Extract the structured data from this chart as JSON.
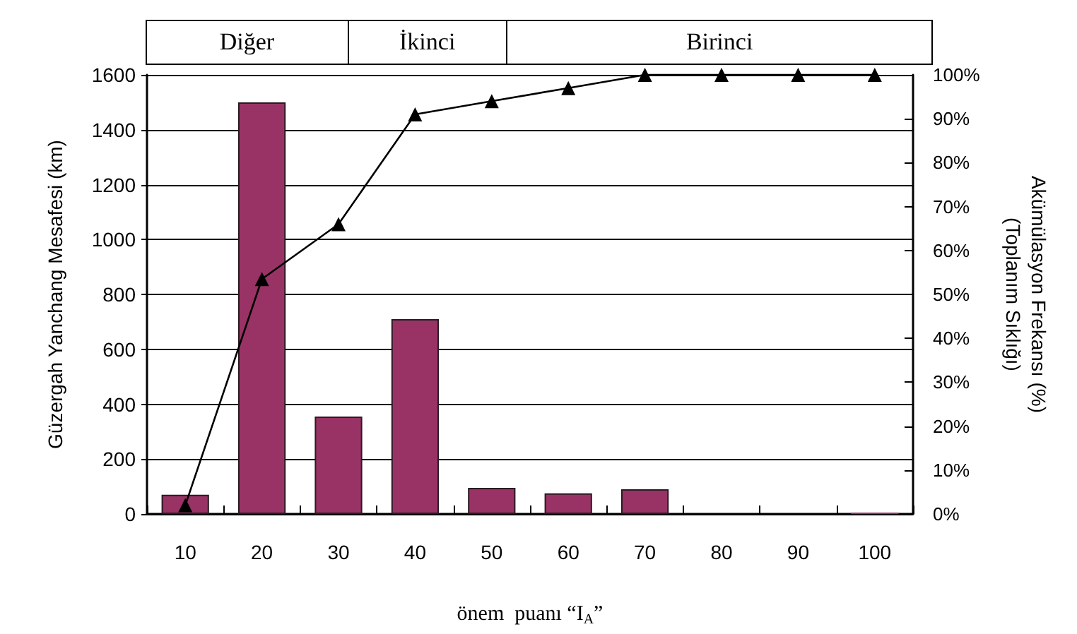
{
  "chart_data": {
    "type": "bar",
    "xlabel": "önem  puanı “I$_{A}$”",
    "ylabel": "Güzergah Yanchang Mesafesi (km)",
    "y2label": "Akümülasyon Frekansı (%)\n(Toplanım Sıklığı)",
    "annotations": [
      "Diğer",
      "İkinci",
      "Birinci"
    ],
    "categories": [
      "10",
      "20",
      "30",
      "40",
      "50",
      "60",
      "70",
      "80",
      "90",
      "100"
    ],
    "series": [
      {
        "color": "#993366",
        "values": [
          70,
          1500,
          355,
          710,
          95,
          75,
          90,
          0,
          0,
          5
        ]
      },
      {
        "type": "line",
        "axis": "y2",
        "color": "#000000",
        "marker": "triangle",
        "line_style": "solid",
        "values": [
          2,
          53.5,
          66,
          91,
          94,
          97,
          100,
          100,
          100,
          100
        ]
      }
    ],
    "ylim": [
      0,
      1600
    ],
    "yticks": [
      0,
      200,
      400,
      600,
      800,
      1000,
      1200,
      1400,
      1600
    ],
    "y2lim": [
      0,
      100
    ],
    "y2ticks": [
      {
        "value": 0,
        "label": "0%"
      },
      {
        "value": 10,
        "label": "10%"
      },
      {
        "value": 20,
        "label": "20%"
      },
      {
        "value": 30,
        "label": "30%"
      },
      {
        "value": 40,
        "label": "40%"
      },
      {
        "value": 50,
        "label": "50%"
      },
      {
        "value": 60,
        "label": "60%"
      },
      {
        "value": 70,
        "label": "70%"
      },
      {
        "value": 80,
        "label": "80%"
      },
      {
        "value": 90,
        "label": "90%"
      },
      {
        "value": 100,
        "label": "100%"
      }
    ],
    "grid": "y"
  }
}
